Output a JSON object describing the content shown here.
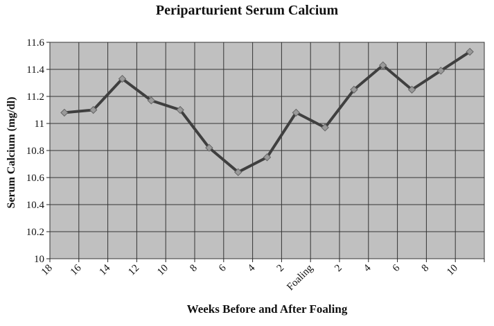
{
  "chart_data": {
    "type": "line",
    "title": "Periparturient Serum Calcium",
    "xlabel": "Weeks Before and After Foaling",
    "ylabel": "Serum Calcium (mg/dl)",
    "categories": [
      "18",
      "16",
      "14",
      "12",
      "10",
      "8",
      "6",
      "4",
      "2",
      "Foaling",
      "2",
      "4",
      "6",
      "8",
      "10"
    ],
    "series": [
      {
        "values": [
          11.08,
          11.1,
          11.33,
          11.17,
          11.1,
          10.82,
          10.64,
          10.75,
          11.08,
          10.97,
          11.25,
          11.43,
          11.25,
          11.39,
          11.53
        ]
      }
    ],
    "ylim": [
      10,
      11.6
    ],
    "yticks": [
      "10",
      "10.2",
      "10.4",
      "10.6",
      "10.8",
      "11",
      "11.2",
      "11.4",
      "11.6"
    ],
    "grid": true,
    "colors": {
      "plot_background": "#c0c0c0",
      "line": "#555555",
      "marker": "#9a9a9a",
      "grid": "#333333"
    }
  }
}
